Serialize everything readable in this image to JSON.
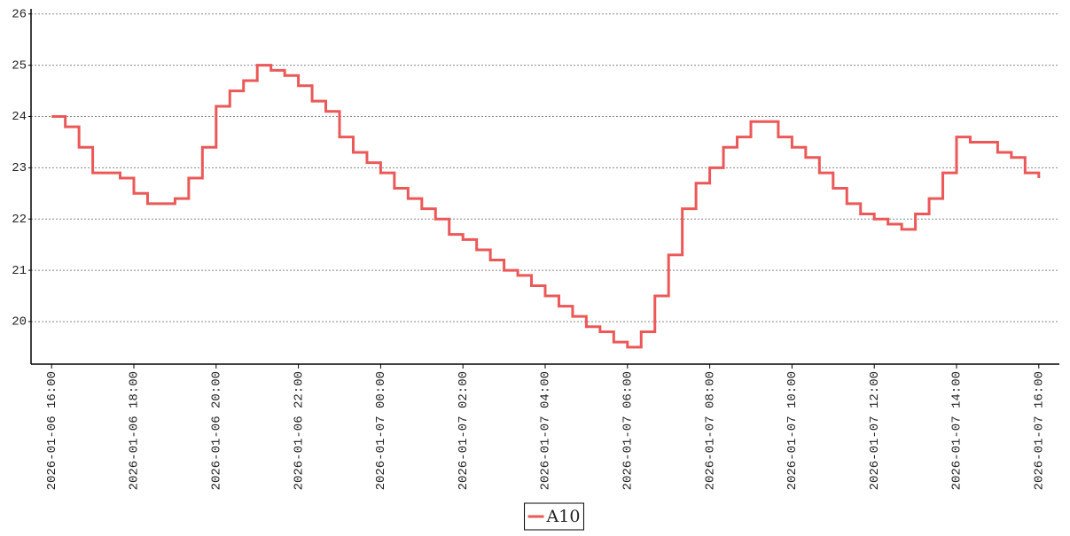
{
  "chart_data": {
    "type": "step-line",
    "x": [
      "2026-01-06 16:00",
      "2026-01-06 16:20",
      "2026-01-06 16:40",
      "2026-01-06 17:00",
      "2026-01-06 17:20",
      "2026-01-06 17:40",
      "2026-01-06 18:00",
      "2026-01-06 18:20",
      "2026-01-06 18:40",
      "2026-01-06 19:00",
      "2026-01-06 19:20",
      "2026-01-06 19:40",
      "2026-01-06 20:00",
      "2026-01-06 20:20",
      "2026-01-06 20:40",
      "2026-01-06 21:00",
      "2026-01-06 21:20",
      "2026-01-06 21:40",
      "2026-01-06 22:00",
      "2026-01-06 22:20",
      "2026-01-06 22:40",
      "2026-01-06 23:00",
      "2026-01-06 23:20",
      "2026-01-06 23:40",
      "2026-01-07 00:00",
      "2026-01-07 00:20",
      "2026-01-07 00:40",
      "2026-01-07 01:00",
      "2026-01-07 01:20",
      "2026-01-07 01:40",
      "2026-01-07 02:00",
      "2026-01-07 02:20",
      "2026-01-07 02:40",
      "2026-01-07 03:00",
      "2026-01-07 03:20",
      "2026-01-07 03:40",
      "2026-01-07 04:00",
      "2026-01-07 04:20",
      "2026-01-07 04:40",
      "2026-01-07 05:00",
      "2026-01-07 05:20",
      "2026-01-07 05:40",
      "2026-01-07 06:00",
      "2026-01-07 06:20",
      "2026-01-07 06:40",
      "2026-01-07 07:00",
      "2026-01-07 07:20",
      "2026-01-07 07:40",
      "2026-01-07 08:00",
      "2026-01-07 08:20",
      "2026-01-07 08:40",
      "2026-01-07 09:00",
      "2026-01-07 09:20",
      "2026-01-07 09:40",
      "2026-01-07 10:00",
      "2026-01-07 10:20",
      "2026-01-07 10:40",
      "2026-01-07 11:00",
      "2026-01-07 11:20",
      "2026-01-07 11:40",
      "2026-01-07 12:00",
      "2026-01-07 12:20",
      "2026-01-07 12:40",
      "2026-01-07 13:00",
      "2026-01-07 13:20",
      "2026-01-07 13:40",
      "2026-01-07 14:00",
      "2026-01-07 14:20",
      "2026-01-07 14:40",
      "2026-01-07 15:00",
      "2026-01-07 15:20",
      "2026-01-07 15:40",
      "2026-01-07 16:00"
    ],
    "series": [
      {
        "name": "A10",
        "color": "#ec5858",
        "values": [
          24.0,
          23.8,
          23.4,
          22.9,
          22.9,
          22.8,
          22.5,
          22.3,
          22.3,
          22.4,
          22.8,
          23.4,
          24.2,
          24.5,
          24.7,
          25.0,
          24.9,
          24.8,
          24.6,
          24.3,
          24.1,
          23.6,
          23.3,
          23.1,
          22.9,
          22.6,
          22.4,
          22.2,
          22.0,
          21.7,
          21.6,
          21.4,
          21.2,
          21.0,
          20.9,
          20.7,
          20.5,
          20.3,
          20.1,
          19.9,
          19.8,
          19.6,
          19.5,
          19.8,
          20.5,
          21.3,
          22.2,
          22.7,
          23.0,
          23.4,
          23.6,
          23.9,
          23.9,
          23.6,
          23.4,
          23.2,
          22.9,
          22.6,
          22.3,
          22.1,
          22.0,
          21.9,
          21.8,
          22.1,
          22.4,
          22.9,
          23.6,
          23.5,
          23.5,
          23.3,
          23.2,
          22.9,
          22.8
        ]
      }
    ],
    "xlim": [
      "2026-01-06 15:30",
      "2026-01-07 16:30"
    ],
    "xticks": [
      "2026-01-06 16:00",
      "2026-01-06 18:00",
      "2026-01-06 20:00",
      "2026-01-06 22:00",
      "2026-01-07 00:00",
      "2026-01-07 02:00",
      "2026-01-07 04:00",
      "2026-01-07 06:00",
      "2026-01-07 08:00",
      "2026-01-07 10:00",
      "2026-01-07 12:00",
      "2026-01-07 14:00",
      "2026-01-07 16:00"
    ],
    "ylim": [
      19.17,
      26.1
    ],
    "yticks": [
      20,
      21,
      22,
      23,
      24,
      25,
      26
    ],
    "grid": true,
    "legend": "bottom"
  }
}
